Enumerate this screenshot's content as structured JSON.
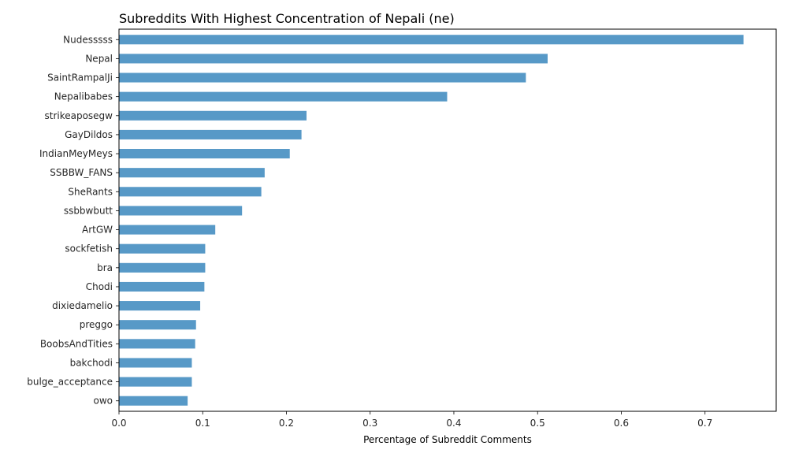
{
  "chart_data": {
    "type": "bar",
    "orientation": "horizontal",
    "title": "Subreddits With Highest Concentration of Nepali (ne)",
    "xlabel": "Percentage of Subreddit Comments",
    "ylabel": "",
    "xlim": [
      0,
      0.785
    ],
    "xticks": [
      0.0,
      0.1,
      0.2,
      0.3,
      0.4,
      0.5,
      0.6,
      0.7
    ],
    "xtick_labels": [
      "0.0",
      "0.1",
      "0.2",
      "0.3",
      "0.4",
      "0.5",
      "0.6",
      "0.7"
    ],
    "grid": false,
    "bar_color": "#5799c7",
    "categories": [
      "Nudesssss",
      "Nepal",
      "SaintRampalJi",
      "Nepalibabes",
      "strikeaposegw",
      "GayDildos",
      "IndianMeyMeys",
      "SSBBW_FANS",
      "SheRants",
      "ssbbwbutt",
      "ArtGW",
      "sockfetish",
      "bra",
      "Chodi",
      "dixiedamelio",
      "preggo",
      "BoobsAndTities",
      "bakchodi",
      "bulge_acceptance",
      "owo"
    ],
    "values": [
      0.746,
      0.512,
      0.486,
      0.392,
      0.224,
      0.218,
      0.204,
      0.174,
      0.17,
      0.147,
      0.115,
      0.103,
      0.103,
      0.102,
      0.097,
      0.092,
      0.091,
      0.087,
      0.087,
      0.082
    ]
  }
}
